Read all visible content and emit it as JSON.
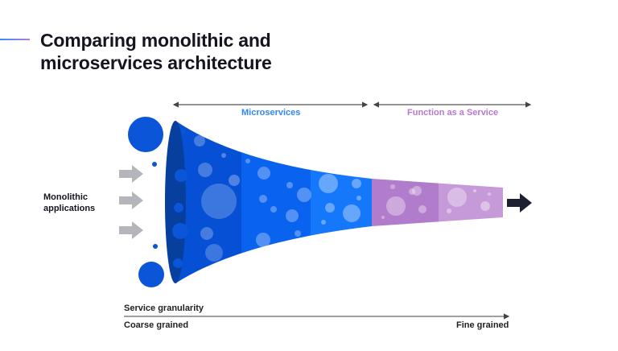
{
  "title": {
    "line1": "Comparing monolithic and",
    "line2": "microservices architecture"
  },
  "ranges": {
    "microservices": "Microservices",
    "faas": "Function as a Service"
  },
  "left_label": {
    "line1": "Monolithic",
    "line2": "applications"
  },
  "axis": {
    "title": "Service granularity",
    "start": "Coarse grained",
    "end": "Fine grained"
  },
  "colors": {
    "microservices": "#2f86f5",
    "faas": "#b777d4",
    "monolith": "#0a55d8",
    "text": "#14151f"
  }
}
